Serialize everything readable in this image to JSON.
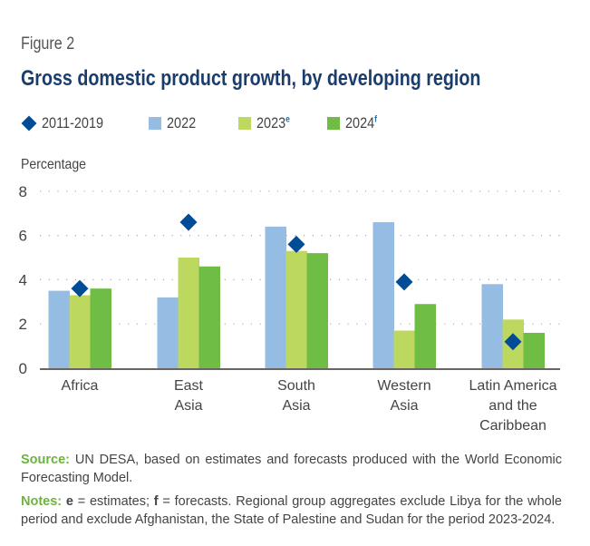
{
  "figure_label": "Figure 2",
  "chart_data": {
    "type": "bar",
    "title": "Gross domestic product growth, by developing region",
    "ylabel": "Percentage",
    "xlabel": "",
    "ylim": [
      0,
      8
    ],
    "yticks": [
      0,
      2,
      4,
      6,
      8
    ],
    "grid": true,
    "legend_position": "top-left",
    "categories": [
      [
        "Africa"
      ],
      [
        "East",
        "Asia"
      ],
      [
        "South",
        "Asia"
      ],
      [
        "Western",
        "Asia"
      ],
      [
        "Latin America",
        "and the",
        "Caribbean"
      ]
    ],
    "series": [
      {
        "name": "2022",
        "sup": "",
        "kind": "bar",
        "color": "#95bde4",
        "values": [
          3.5,
          3.2,
          6.4,
          6.6,
          3.8
        ]
      },
      {
        "name": "2023",
        "sup": "e",
        "kind": "bar",
        "color": "#bdd85e",
        "values": [
          3.3,
          5.0,
          5.3,
          1.7,
          2.2
        ]
      },
      {
        "name": "2024",
        "sup": "f",
        "kind": "bar",
        "color": "#70bd45",
        "values": [
          3.6,
          4.6,
          5.2,
          2.9,
          1.6
        ]
      },
      {
        "name": "2011-2019",
        "sup": "",
        "kind": "diamond",
        "color": "#004c97",
        "values": [
          3.6,
          6.6,
          5.6,
          3.9,
          1.2
        ]
      }
    ]
  },
  "legend": [
    {
      "label": "2011-2019",
      "sup": "",
      "marker": "diamond",
      "color": "#004c97"
    },
    {
      "label": "2022",
      "sup": "",
      "marker": "square",
      "color": "#95bde4"
    },
    {
      "label": "2023",
      "sup": "e",
      "marker": "square",
      "color": "#bdd85e"
    },
    {
      "label": "2024",
      "sup": "f",
      "marker": "square",
      "color": "#70bd45"
    }
  ],
  "footer": {
    "source_key": "Source:",
    "source_text": " UN DESA, based on estimates and forecasts produced with the World Economic Forecasting Model.",
    "notes_key": "Notes:",
    "notes_e": "e",
    "notes_mid1": " = estimates; ",
    "notes_f": "f",
    "notes_mid2": " = forecasts. Regional group aggregates exclude Libya for the whole period and exclude Afghanistan, the State of Palestine and Sudan for the period 2023-2024."
  }
}
